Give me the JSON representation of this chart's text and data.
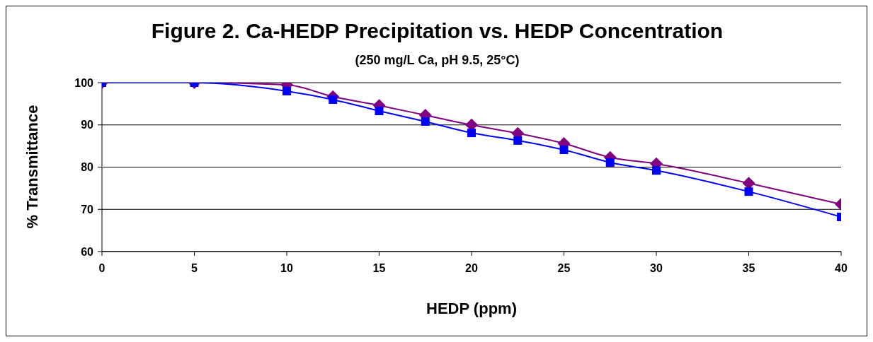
{
  "chart_data": {
    "type": "line",
    "title": "Figure 2. Ca-HEDP Precipitation vs. HEDP Concentration",
    "subtitle": "(250 mg/L Ca, pH 9.5, 25°C)",
    "xlabel": "HEDP (ppm)",
    "ylabel": "% Transmittance",
    "x": [
      0,
      5,
      10,
      12.5,
      15,
      17.5,
      20,
      22.5,
      25,
      27.5,
      30,
      35,
      40
    ],
    "series": [
      {
        "color": "#800080",
        "marker": "diamond",
        "values": [
          100,
          100,
          99.5,
          96.7,
          94.6,
          92.3,
          90,
          88,
          85.6,
          82.3,
          80.8,
          76.2,
          71.2
        ]
      },
      {
        "color": "#0000ff",
        "marker": "square",
        "values": [
          100,
          100,
          98,
          96,
          93.3,
          90.8,
          88.1,
          86.3,
          84.1,
          81.1,
          79.2,
          74.2,
          68.2
        ]
      }
    ],
    "xlim": [
      0,
      40
    ],
    "xticks": [
      0,
      5,
      10,
      15,
      20,
      25,
      30,
      35,
      40
    ],
    "ylim": [
      60,
      100
    ],
    "yticks": [
      60,
      70,
      80,
      90,
      100
    ],
    "grid": "y",
    "legend": false,
    "line_style": "solid"
  }
}
